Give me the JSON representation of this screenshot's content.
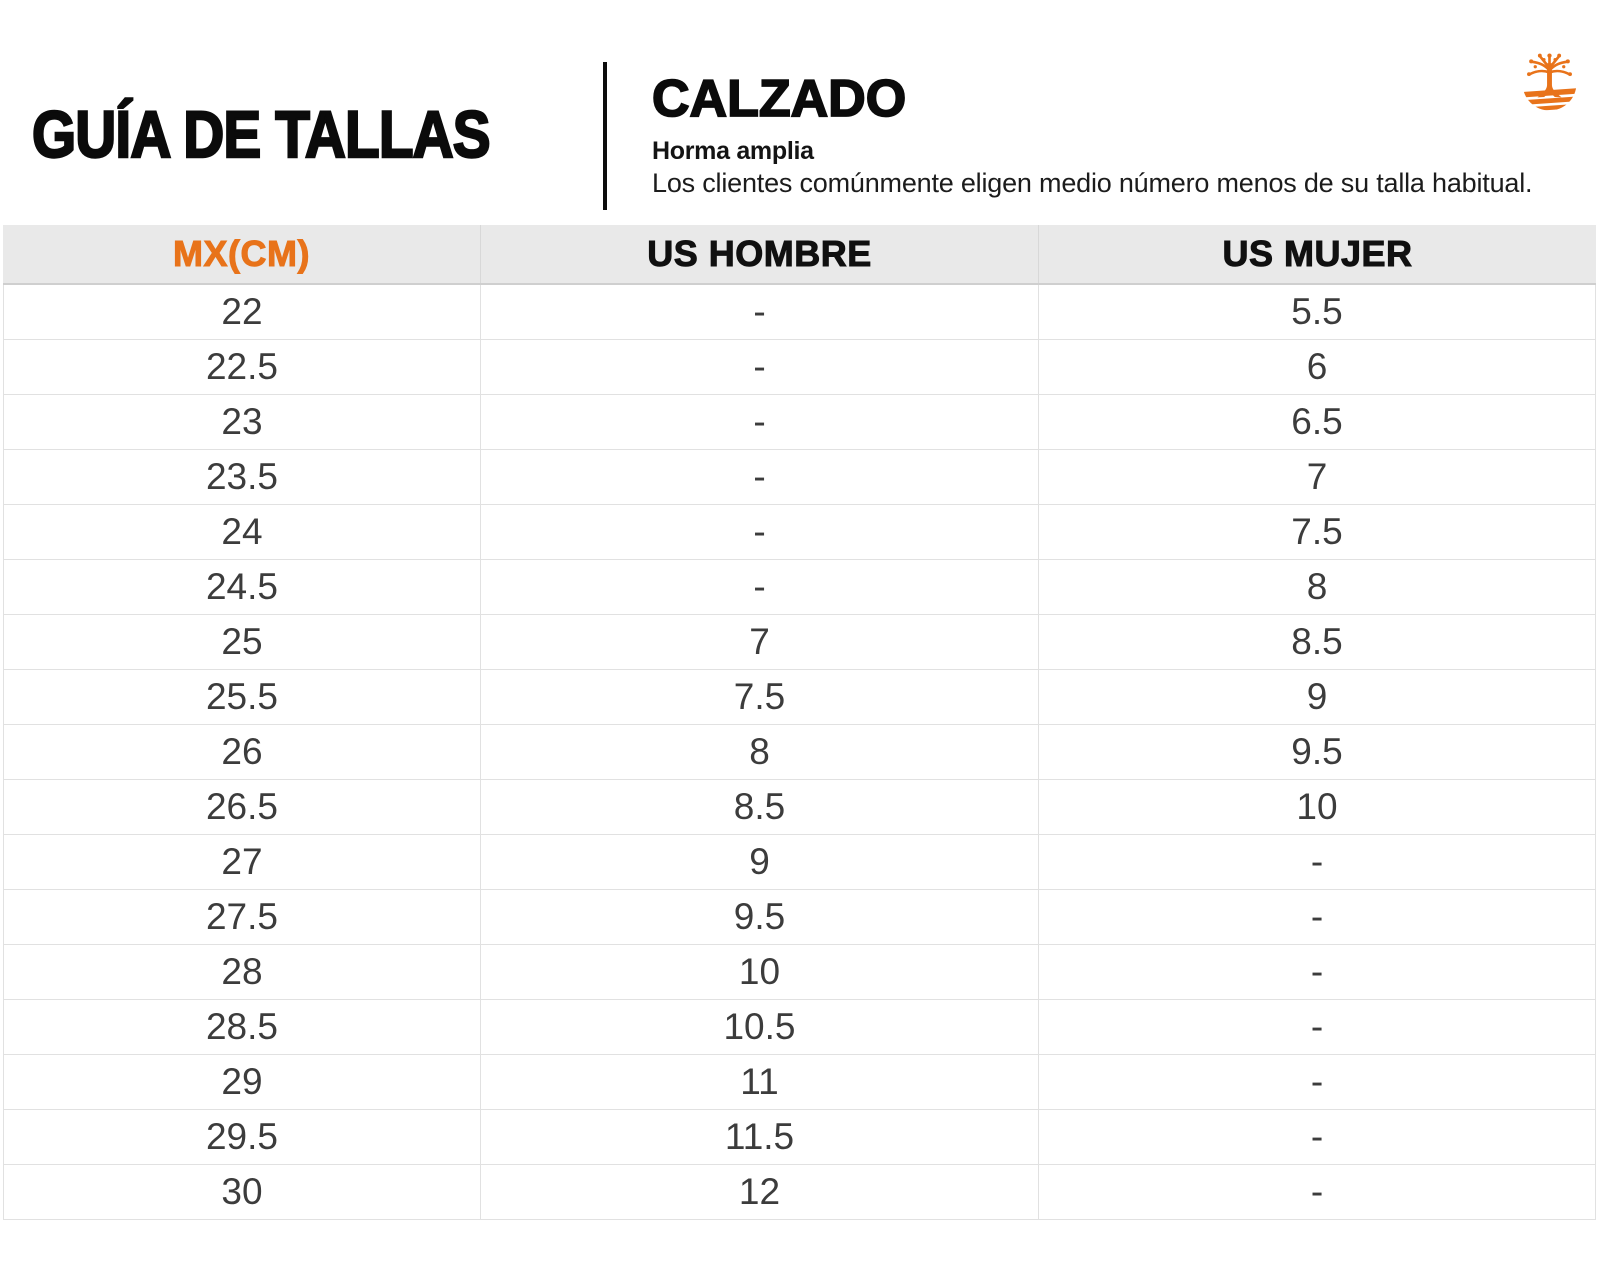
{
  "header": {
    "title": "GUÍA DE TALLAS",
    "section_title": "CALZADO",
    "subtitle": "Horma amplia",
    "description": "Los clientes comúnmente eligen medio número menos de su talla habitual.",
    "logo": "timberland-tree-logo"
  },
  "colors": {
    "accent_orange": "#E8731A",
    "title_black": "#0B0B0B",
    "table_header_bg": "#E9E9E9",
    "row_border": "#E1E1E1",
    "cell_text": "#3C3C3C"
  },
  "table": {
    "columns": [
      "MX(CM)",
      "US HOMBRE",
      "US MUJER"
    ],
    "rows": [
      [
        "22",
        "-",
        "5.5"
      ],
      [
        "22.5",
        "-",
        "6"
      ],
      [
        "23",
        "-",
        "6.5"
      ],
      [
        "23.5",
        "-",
        "7"
      ],
      [
        "24",
        "-",
        "7.5"
      ],
      [
        "24.5",
        "-",
        "8"
      ],
      [
        "25",
        "7",
        "8.5"
      ],
      [
        "25.5",
        "7.5",
        "9"
      ],
      [
        "26",
        "8",
        "9.5"
      ],
      [
        "26.5",
        "8.5",
        "10"
      ],
      [
        "27",
        "9",
        "-"
      ],
      [
        "27.5",
        "9.5",
        "-"
      ],
      [
        "28",
        "10",
        "-"
      ],
      [
        "28.5",
        "10.5",
        "-"
      ],
      [
        "29",
        "11",
        "-"
      ],
      [
        "29.5",
        "11.5",
        "-"
      ],
      [
        "30",
        "12",
        "-"
      ]
    ]
  },
  "chart_data": {
    "type": "table",
    "title": "GUÍA DE TALLAS — CALZADO (Horma amplia)",
    "columns": [
      "MX(CM)",
      "US HOMBRE",
      "US MUJER"
    ],
    "rows": [
      [
        "22",
        "-",
        "5.5"
      ],
      [
        "22.5",
        "-",
        "6"
      ],
      [
        "23",
        "-",
        "6.5"
      ],
      [
        "23.5",
        "-",
        "7"
      ],
      [
        "24",
        "-",
        "7.5"
      ],
      [
        "24.5",
        "-",
        "8"
      ],
      [
        "25",
        "7",
        "8.5"
      ],
      [
        "25.5",
        "7.5",
        "9"
      ],
      [
        "26",
        "8",
        "9.5"
      ],
      [
        "26.5",
        "8.5",
        "10"
      ],
      [
        "27",
        "9",
        "-"
      ],
      [
        "27.5",
        "9.5",
        "-"
      ],
      [
        "28",
        "10",
        "-"
      ],
      [
        "28.5",
        "10.5",
        "-"
      ],
      [
        "29",
        "11",
        "-"
      ],
      [
        "29.5",
        "11.5",
        "-"
      ],
      [
        "30",
        "12",
        "-"
      ]
    ]
  }
}
